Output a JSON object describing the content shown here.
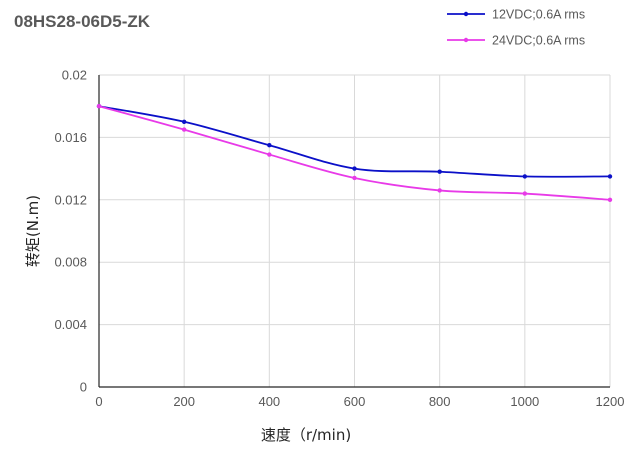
{
  "chart_data": {
    "type": "line",
    "title": "08HS28-06D5-ZK",
    "xlabel": "速度（r/min)",
    "ylabel": "转矩(N.m)",
    "x": [
      0,
      200,
      400,
      600,
      800,
      1000,
      1200
    ],
    "x_ticks": [
      "0",
      "200",
      "400",
      "600",
      "800",
      "1000",
      "1200"
    ],
    "y_ticks": [
      "0",
      "0.004",
      "0.008",
      "0.012",
      "0.016",
      "0.02"
    ],
    "xlim": [
      0,
      1200
    ],
    "ylim": [
      0,
      0.02
    ],
    "grid": true,
    "legend_position": "top-right",
    "series": [
      {
        "name": "12VDC;0.6A rms",
        "color": "#0b10c8",
        "values": [
          0.018,
          0.017,
          0.0155,
          0.014,
          0.0138,
          0.0135,
          0.0135
        ]
      },
      {
        "name": "24VDC;0.6A rms",
        "color": "#e83ae8",
        "values": [
          0.018,
          0.0165,
          0.0149,
          0.0134,
          0.0126,
          0.0124,
          0.012
        ]
      }
    ]
  }
}
